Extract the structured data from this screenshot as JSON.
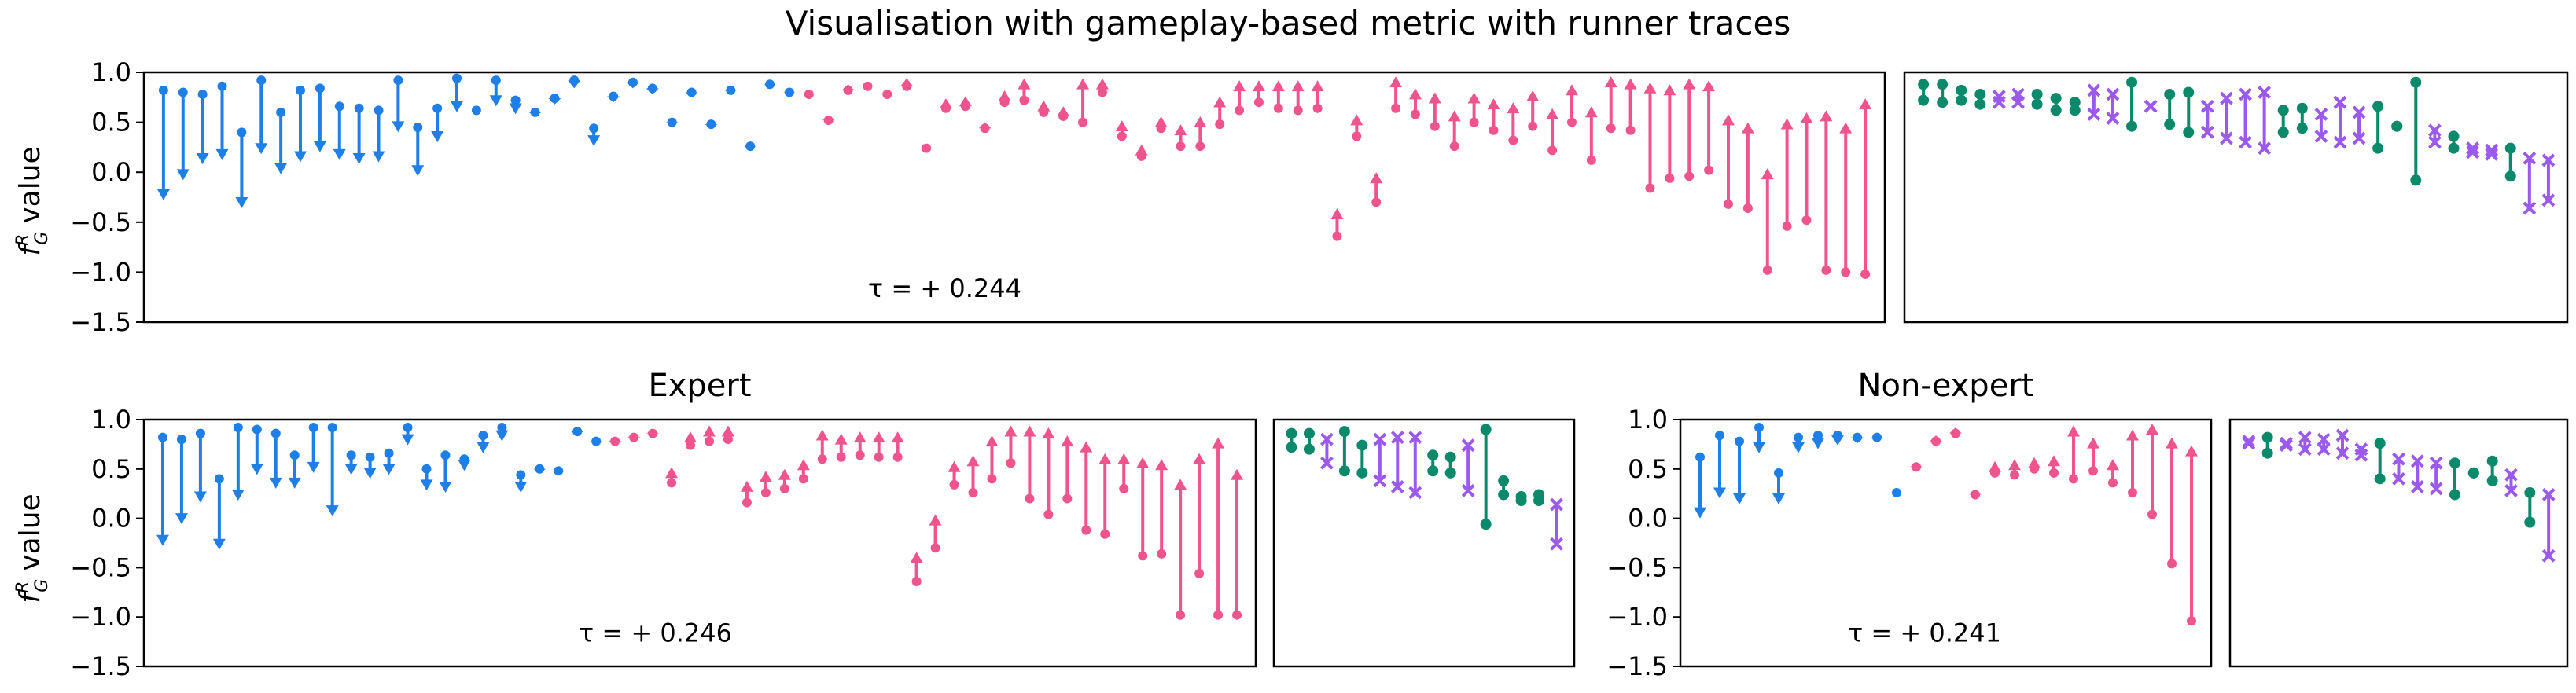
{
  "figure": {
    "title": "Visualisation with gameplay-based metric with runner traces",
    "ylabel": "value",
    "ylabel_math": "f",
    "ylabel_sup": "R",
    "ylabel_sub": "G",
    "colors": {
      "down": "#1e7fe8",
      "up": "#f0548f",
      "pair_green": "#0a8a6a",
      "pair_purple": "#9b59f0",
      "axes": "#000000"
    }
  },
  "chart_data": [
    {
      "id": "overall",
      "title": "",
      "type": "arrow-range",
      "ylim": [
        -1.5,
        1.0
      ],
      "yticks": [
        "1.0",
        "0.5",
        "0.0",
        "-0.5",
        "-1.0",
        "-1.5"
      ],
      "tau": "τ = + 0.244",
      "down": [
        [
          0.82,
          -0.28
        ],
        [
          0.8,
          -0.08
        ],
        [
          0.78,
          0.08
        ],
        [
          0.86,
          0.12
        ],
        [
          0.4,
          -0.36
        ],
        [
          0.92,
          0.18
        ],
        [
          0.6,
          -0.02
        ],
        [
          0.82,
          0.1
        ],
        [
          0.84,
          0.2
        ],
        [
          0.66,
          0.12
        ],
        [
          0.64,
          0.08
        ],
        [
          0.62,
          0.1
        ],
        [
          0.92,
          0.4
        ],
        [
          0.45,
          -0.04
        ],
        [
          0.64,
          0.3
        ],
        [
          0.94,
          0.6
        ],
        [
          0.62,
          0.62
        ],
        [
          0.92,
          0.66
        ],
        [
          0.72,
          0.58
        ],
        [
          0.6,
          0.56
        ],
        [
          0.74,
          0.68
        ],
        [
          0.92,
          0.84
        ],
        [
          0.44,
          0.26
        ],
        [
          0.76,
          0.7
        ],
        [
          0.9,
          0.84
        ],
        [
          0.84,
          0.78
        ],
        [
          0.5,
          0.46
        ],
        [
          0.8,
          0.76
        ],
        [
          0.48,
          0.44
        ],
        [
          0.82,
          0.8
        ],
        [
          0.26,
          0.24
        ],
        [
          0.88,
          0.86
        ],
        [
          0.8,
          0.78
        ]
      ],
      "up": [
        [
          0.78,
          0.8
        ],
        [
          0.52,
          0.55
        ],
        [
          0.82,
          0.88
        ],
        [
          0.86,
          0.9
        ],
        [
          0.78,
          0.82
        ],
        [
          0.86,
          0.94
        ],
        [
          0.24,
          0.28
        ],
        [
          0.64,
          0.74
        ],
        [
          0.66,
          0.76
        ],
        [
          0.44,
          0.5
        ],
        [
          0.7,
          0.82
        ],
        [
          0.72,
          0.94
        ],
        [
          0.6,
          0.72
        ],
        [
          0.56,
          0.66
        ],
        [
          0.5,
          0.94
        ],
        [
          0.8,
          0.94
        ],
        [
          0.36,
          0.52
        ],
        [
          0.16,
          0.28
        ],
        [
          0.44,
          0.56
        ],
        [
          0.26,
          0.48
        ],
        [
          0.26,
          0.56
        ],
        [
          0.48,
          0.76
        ],
        [
          0.62,
          0.92
        ],
        [
          0.7,
          0.92
        ],
        [
          0.64,
          0.92
        ],
        [
          0.62,
          0.92
        ],
        [
          0.64,
          0.92
        ],
        [
          -0.64,
          -0.36
        ],
        [
          0.36,
          0.58
        ],
        [
          -0.3,
          0.0
        ],
        [
          0.64,
          0.96
        ],
        [
          0.58,
          0.84
        ],
        [
          0.46,
          0.8
        ],
        [
          0.26,
          0.62
        ],
        [
          0.5,
          0.8
        ],
        [
          0.42,
          0.74
        ],
        [
          0.32,
          0.7
        ],
        [
          0.46,
          0.82
        ],
        [
          0.22,
          0.64
        ],
        [
          0.5,
          0.88
        ],
        [
          0.12,
          0.66
        ],
        [
          0.44,
          0.96
        ],
        [
          0.42,
          0.94
        ],
        [
          -0.16,
          0.9
        ],
        [
          -0.06,
          0.88
        ],
        [
          -0.04,
          0.94
        ],
        [
          0.02,
          0.92
        ],
        [
          -0.32,
          0.58
        ],
        [
          -0.36,
          0.5
        ],
        [
          -0.98,
          0.04
        ],
        [
          -0.54,
          0.54
        ],
        [
          -0.48,
          0.6
        ],
        [
          -0.98,
          0.62
        ],
        [
          -1.0,
          0.5
        ],
        [
          -1.02,
          0.74
        ]
      ]
    },
    {
      "id": "overall-pairs",
      "title": "",
      "type": "pair-range",
      "ylim": [
        -1.5,
        1.0
      ],
      "pairs": [
        [
          "g",
          0.88,
          0.72
        ],
        [
          "g",
          0.88,
          0.7
        ],
        [
          "g",
          0.82,
          0.72
        ],
        [
          "g",
          0.78,
          0.68
        ],
        [
          "p",
          0.76,
          0.7
        ],
        [
          "p",
          0.78,
          0.7
        ],
        [
          "g",
          0.78,
          0.68
        ],
        [
          "g",
          0.74,
          0.62
        ],
        [
          "g",
          0.7,
          0.62
        ],
        [
          "p",
          0.82,
          0.58
        ],
        [
          "p",
          0.78,
          0.54
        ],
        [
          "g",
          0.9,
          0.46
        ],
        [
          "p",
          0.66,
          0.66
        ],
        [
          "g",
          0.78,
          0.48
        ],
        [
          "g",
          0.8,
          0.4
        ],
        [
          "p",
          0.66,
          0.4
        ],
        [
          "p",
          0.74,
          0.34
        ],
        [
          "p",
          0.78,
          0.3
        ],
        [
          "p",
          0.8,
          0.24
        ],
        [
          "g",
          0.62,
          0.4
        ],
        [
          "g",
          0.64,
          0.44
        ],
        [
          "p",
          0.58,
          0.36
        ],
        [
          "p",
          0.7,
          0.3
        ],
        [
          "p",
          0.6,
          0.34
        ],
        [
          "g",
          0.66,
          0.24
        ],
        [
          "g",
          0.46,
          0.46
        ],
        [
          "g",
          0.9,
          -0.08
        ],
        [
          "p",
          0.42,
          0.3
        ],
        [
          "g",
          0.36,
          0.24
        ],
        [
          "p",
          0.24,
          0.2
        ],
        [
          "p",
          0.22,
          0.18
        ],
        [
          "g",
          0.24,
          -0.04
        ],
        [
          "p",
          0.14,
          -0.36
        ],
        [
          "p",
          0.12,
          -0.28
        ]
      ]
    },
    {
      "id": "expert",
      "title": "Expert",
      "type": "arrow-range",
      "ylim": [
        -1.5,
        1.0
      ],
      "yticks": [
        "1.0",
        "0.5",
        "0.0",
        "-0.5",
        "-1.0",
        "-1.5"
      ],
      "tau": "τ = + 0.246",
      "down": [
        [
          0.82,
          -0.28
        ],
        [
          0.8,
          -0.06
        ],
        [
          0.86,
          0.16
        ],
        [
          0.4,
          -0.32
        ],
        [
          0.92,
          0.18
        ],
        [
          0.9,
          0.44
        ],
        [
          0.86,
          0.3
        ],
        [
          0.64,
          0.3
        ],
        [
          0.92,
          0.46
        ],
        [
          0.92,
          0.02
        ],
        [
          0.64,
          0.44
        ],
        [
          0.62,
          0.4
        ],
        [
          0.66,
          0.44
        ],
        [
          0.92,
          0.74
        ],
        [
          0.5,
          0.28
        ],
        [
          0.64,
          0.26
        ],
        [
          0.6,
          0.48
        ],
        [
          0.84,
          0.66
        ],
        [
          0.92,
          0.78
        ],
        [
          0.44,
          0.26
        ],
        [
          0.5,
          0.46
        ],
        [
          0.48,
          0.44
        ],
        [
          0.88,
          0.84
        ],
        [
          0.78,
          0.76
        ]
      ],
      "up": [
        [
          0.78,
          0.82
        ],
        [
          0.82,
          0.86
        ],
        [
          0.86,
          0.9
        ],
        [
          0.36,
          0.52
        ],
        [
          0.74,
          0.88
        ],
        [
          0.78,
          0.94
        ],
        [
          0.8,
          0.94
        ],
        [
          0.16,
          0.38
        ],
        [
          0.26,
          0.48
        ],
        [
          0.3,
          0.5
        ],
        [
          0.4,
          0.6
        ],
        [
          0.6,
          0.9
        ],
        [
          0.62,
          0.86
        ],
        [
          0.64,
          0.88
        ],
        [
          0.62,
          0.88
        ],
        [
          0.62,
          0.88
        ],
        [
          -0.64,
          -0.34
        ],
        [
          -0.3,
          0.04
        ],
        [
          0.34,
          0.58
        ],
        [
          0.26,
          0.64
        ],
        [
          0.4,
          0.84
        ],
        [
          0.56,
          0.94
        ],
        [
          0.2,
          0.94
        ],
        [
          0.04,
          0.92
        ],
        [
          0.2,
          0.84
        ],
        [
          -0.12,
          0.78
        ],
        [
          -0.16,
          0.66
        ],
        [
          0.3,
          0.66
        ],
        [
          -0.38,
          0.62
        ],
        [
          -0.36,
          0.6
        ],
        [
          -0.98,
          0.4
        ],
        [
          -0.56,
          0.66
        ],
        [
          -0.98,
          0.82
        ],
        [
          -0.98,
          0.5
        ]
      ]
    },
    {
      "id": "expert-pairs",
      "title": "",
      "type": "pair-range",
      "ylim": [
        -1.5,
        1.0
      ],
      "pairs": [
        [
          "g",
          0.86,
          0.72
        ],
        [
          "g",
          0.86,
          0.7
        ],
        [
          "p",
          0.8,
          0.56
        ],
        [
          "g",
          0.88,
          0.48
        ],
        [
          "g",
          0.74,
          0.46
        ],
        [
          "p",
          0.8,
          0.38
        ],
        [
          "p",
          0.82,
          0.32
        ],
        [
          "p",
          0.82,
          0.26
        ],
        [
          "g",
          0.64,
          0.48
        ],
        [
          "g",
          0.62,
          0.46
        ],
        [
          "p",
          0.74,
          0.28
        ],
        [
          "g",
          0.9,
          -0.06
        ],
        [
          "g",
          0.38,
          0.24
        ],
        [
          "g",
          0.22,
          0.18
        ],
        [
          "g",
          0.24,
          0.18
        ],
        [
          "p",
          0.14,
          -0.26
        ]
      ]
    },
    {
      "id": "nonexpert",
      "title": "Non-expert",
      "type": "arrow-range",
      "ylim": [
        -1.5,
        1.0
      ],
      "yticks": [
        "1.0",
        "0.5",
        "0.0",
        "-0.5",
        "-1.0",
        "-1.5"
      ],
      "tau": "τ = + 0.241",
      "down": [
        [
          0.62,
          0.0
        ],
        [
          0.84,
          0.2
        ],
        [
          0.78,
          0.14
        ],
        [
          0.92,
          0.66
        ],
        [
          0.46,
          0.14
        ],
        [
          0.82,
          0.66
        ],
        [
          0.84,
          0.7
        ],
        [
          0.84,
          0.74
        ],
        [
          0.82,
          0.76
        ],
        [
          0.82,
          0.8
        ],
        [
          0.26,
          0.24
        ]
      ],
      "up": [
        [
          0.52,
          0.56
        ],
        [
          0.78,
          0.84
        ],
        [
          0.86,
          0.92
        ],
        [
          0.24,
          0.28
        ],
        [
          0.46,
          0.58
        ],
        [
          0.44,
          0.6
        ],
        [
          0.5,
          0.62
        ],
        [
          0.46,
          0.64
        ],
        [
          0.4,
          0.94
        ],
        [
          0.48,
          0.82
        ],
        [
          0.36,
          0.6
        ],
        [
          0.26,
          0.9
        ],
        [
          0.04,
          0.96
        ],
        [
          -0.46,
          0.82
        ],
        [
          -1.04,
          0.74
        ]
      ]
    },
    {
      "id": "nonexpert-pairs",
      "title": "",
      "type": "pair-range",
      "ylim": [
        -1.5,
        1.0
      ],
      "pairs": [
        [
          "p",
          0.78,
          0.76
        ],
        [
          "g",
          0.82,
          0.66
        ],
        [
          "p",
          0.76,
          0.74
        ],
        [
          "p",
          0.82,
          0.7
        ],
        [
          "p",
          0.8,
          0.7
        ],
        [
          "p",
          0.84,
          0.66
        ],
        [
          "p",
          0.7,
          0.64
        ],
        [
          "g",
          0.76,
          0.4
        ],
        [
          "p",
          0.6,
          0.4
        ],
        [
          "p",
          0.58,
          0.32
        ],
        [
          "p",
          0.56,
          0.3
        ],
        [
          "g",
          0.56,
          0.24
        ],
        [
          "g",
          0.46,
          0.46
        ],
        [
          "g",
          0.58,
          0.38
        ],
        [
          "p",
          0.44,
          0.28
        ],
        [
          "g",
          0.26,
          -0.04
        ],
        [
          "p",
          0.24,
          -0.38
        ]
      ]
    }
  ]
}
